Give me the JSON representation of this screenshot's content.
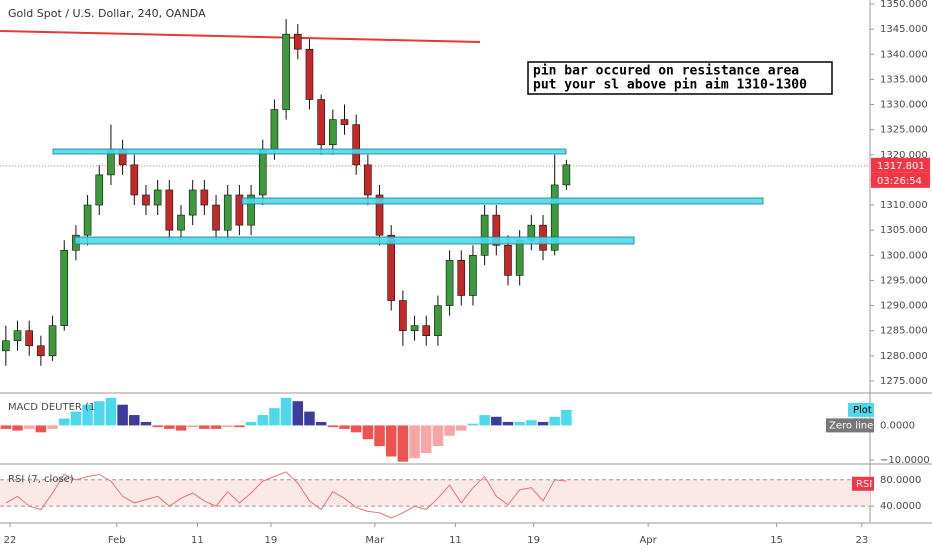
{
  "chart_data": [
    {
      "type": "candlestick",
      "title": "Gold Spot / U.S. Dollar, 240, OANDA",
      "annotations": [
        "pin bar occured on resistance area",
        "put your sl above pin aim 1310-1300"
      ],
      "last_price": 1317.801,
      "countdown": "03:26:54",
      "up_color": "#3b9b3b",
      "down_color": "#c62828",
      "last_color": "#f23645",
      "xlim": [
        -0.5,
        74
      ],
      "xticks": [
        {
          "value": 0.36,
          "label": "22"
        },
        {
          "value": 9.5,
          "label": "Feb"
        },
        {
          "value": 16.4,
          "label": "11"
        },
        {
          "value": 22.7,
          "label": "19"
        },
        {
          "value": 31.6,
          "label": "Mar"
        },
        {
          "value": 38.5,
          "label": "11"
        },
        {
          "value": 45.2,
          "label": "19"
        },
        {
          "value": 55,
          "label": "Apr"
        },
        {
          "value": 66,
          "label": "15"
        },
        {
          "value": 73.3,
          "label": "23"
        }
      ],
      "ylim": [
        1272.8,
        1350.8
      ],
      "yticks": [
        {
          "value": 1350,
          "label": "1350.000"
        },
        {
          "value": 1345,
          "label": "1345.000"
        },
        {
          "value": 1340,
          "label": "1340.000"
        },
        {
          "value": 1335,
          "label": "1335.000"
        },
        {
          "value": 1330,
          "label": "1330.000"
        },
        {
          "value": 1325,
          "label": "1325.000"
        },
        {
          "value": 1320,
          "label": "1320.000"
        },
        {
          "value": 1315,
          "label": "1315.000"
        },
        {
          "value": 1310,
          "label": "1310.000"
        },
        {
          "value": 1305,
          "label": "1305.000"
        },
        {
          "value": 1300,
          "label": "1300.000"
        },
        {
          "value": 1295,
          "label": "1295.000"
        },
        {
          "value": 1290,
          "label": "1290.000"
        },
        {
          "value": 1285,
          "label": "1285.000"
        },
        {
          "value": 1280,
          "label": "1280.000"
        },
        {
          "value": 1275,
          "label": "1275.000"
        }
      ],
      "open": [
        1281,
        1283,
        1285,
        1282,
        1280,
        1286,
        1301,
        1304,
        1310,
        1316,
        1321,
        1318,
        1312,
        1310,
        1313,
        1305,
        1308,
        1313,
        1310,
        1305,
        1312,
        1306,
        1312,
        1321,
        1329,
        1344,
        1341,
        1331,
        1322,
        1327,
        1326,
        1318,
        1312,
        1304,
        1291,
        1285,
        1286,
        1284,
        1290,
        1299,
        1292,
        1300,
        1308,
        1302,
        1296,
        1303,
        1306,
        1301,
        1314
      ],
      "high": [
        1286,
        1287,
        1287,
        1284,
        1288,
        1303,
        1306,
        1312,
        1318,
        1326,
        1323,
        1320,
        1314,
        1315,
        1315,
        1310,
        1315,
        1315,
        1312,
        1314,
        1314,
        1314,
        1323,
        1331,
        1347,
        1346,
        1343,
        1332,
        1329,
        1330,
        1328,
        1320,
        1314,
        1306,
        1293,
        1288,
        1288,
        1292,
        1301,
        1301,
        1302,
        1310,
        1310,
        1304,
        1305,
        1308,
        1308,
        1320,
        1319
      ],
      "low": [
        1278,
        1281,
        1280,
        1278,
        1279,
        1285,
        1299,
        1302,
        1308,
        1314,
        1316,
        1310,
        1308,
        1308,
        1303,
        1303,
        1306,
        1308,
        1303,
        1303,
        1304,
        1304,
        1310,
        1319,
        1327,
        1339,
        1329,
        1320,
        1320,
        1324,
        1316,
        1310,
        1302,
        1289,
        1282,
        1283,
        1282,
        1282,
        1288,
        1290,
        1290,
        1298,
        1300,
        1294,
        1294,
        1301,
        1299,
        1300,
        1313
      ],
      "close": [
        1283,
        1285,
        1282,
        1280,
        1286,
        1301,
        1304,
        1310,
        1316,
        1321,
        1318,
        1312,
        1310,
        1313,
        1305,
        1308,
        1313,
        1310,
        1305,
        1312,
        1306,
        1312,
        1321,
        1329,
        1344,
        1341,
        1331,
        1322,
        1327,
        1326,
        1318,
        1312,
        1304,
        1291,
        1285,
        1286,
        1284,
        1290,
        1299,
        1292,
        1300,
        1308,
        1302,
        1296,
        1303,
        1306,
        1301,
        1314,
        1318
      ]
    },
    {
      "type": "bar",
      "title": "MACD DEUTER (1",
      "series_labels": [
        "Plot",
        "Zero line"
      ],
      "colors": [
        "#4dd9ec",
        "#3c3c9c",
        "#ef5350",
        "#f7a5a5"
      ],
      "ylim": [
        -10.6,
        9.1
      ],
      "yticks": [
        {
          "value": 0,
          "label": "0.0000"
        },
        {
          "value": -10,
          "label": "−10.0000"
        }
      ],
      "values": [
        -1,
        -1.5,
        -1,
        -2,
        -1,
        2,
        4,
        6,
        7,
        8,
        6,
        3,
        1,
        -0.5,
        -1,
        -1.5,
        -0.5,
        -1,
        -1,
        -0.5,
        -0.5,
        1,
        3,
        5,
        8,
        7,
        4,
        1,
        -0.5,
        -1,
        -2,
        -4,
        -6,
        -9,
        -10.5,
        -9.5,
        -8,
        -6,
        -3,
        -1.5,
        0.5,
        3,
        2.5,
        1,
        1,
        1.5,
        1,
        2.5,
        4.5
      ]
    },
    {
      "type": "line",
      "title": "RSI (7, close)",
      "series_label": "RSI",
      "color": "#e57373",
      "ylim": [
        16,
        102.4
      ],
      "yticks": [
        {
          "value": 80,
          "label": "80.0000"
        },
        {
          "value": 40,
          "label": "40.0000"
        }
      ],
      "values": [
        45,
        55,
        40,
        35,
        60,
        88,
        80,
        85,
        88,
        78,
        55,
        45,
        50,
        55,
        40,
        52,
        60,
        48,
        40,
        62,
        45,
        60,
        78,
        85,
        92,
        75,
        48,
        35,
        62,
        52,
        38,
        32,
        30,
        22,
        30,
        40,
        35,
        52,
        72,
        45,
        68,
        85,
        55,
        42,
        65,
        68,
        48,
        80,
        78
      ]
    }
  ]
}
